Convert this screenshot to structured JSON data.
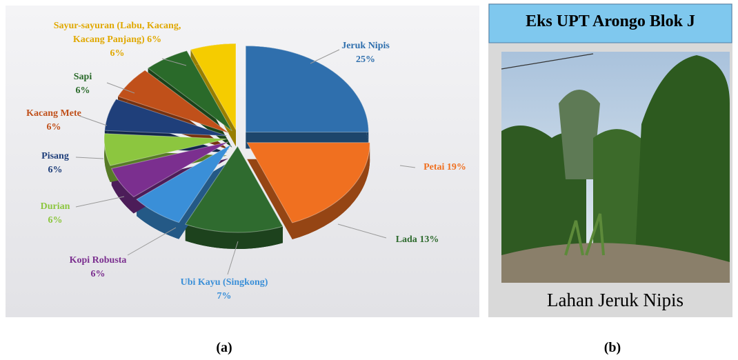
{
  "chart_data": {
    "type": "pie",
    "categories": [
      "Jeruk Nipis",
      "Petai",
      "Lada",
      "Ubi Kayu (Singkong)",
      "Kopi Robusta",
      "Durian",
      "Pisang",
      "Kacang Mete",
      "Sapi",
      "Sayur-sayuran (Labu, Kacang, Kacang Panjang) 6%"
    ],
    "values": [
      25,
      19,
      13,
      7,
      6,
      6,
      6,
      6,
      6,
      6
    ],
    "value_labels": [
      "25%",
      "19%",
      "13%",
      "7%",
      "6%",
      "6%",
      "6%",
      "6%",
      "6%",
      "6%"
    ],
    "colors": [
      "#2f6fad",
      "#f07020",
      "#2f6b2f",
      "#3a8fd8",
      "#7b2f8f",
      "#8cc63f",
      "#1f3f7a",
      "#c0501a",
      "#2a6a2a",
      "#f5cc00"
    ]
  },
  "photo_panel": {
    "title": "Eks UPT Arongo Blok J",
    "caption": "Lahan Jeruk Nipis"
  },
  "figure_labels": [
    "(a)",
    "(b)"
  ]
}
